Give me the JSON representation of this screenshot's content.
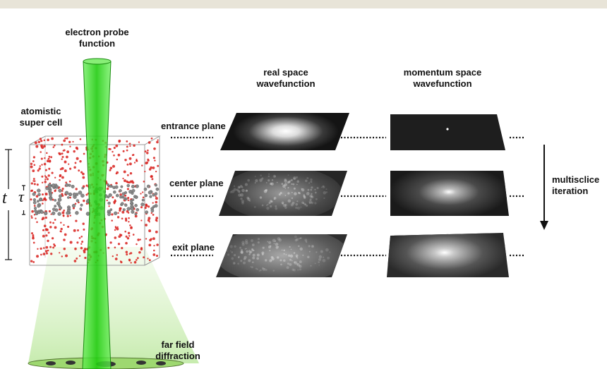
{
  "labels": {
    "probe_line1": "electron probe",
    "probe_line2": "function",
    "cell_line1": "atomistic",
    "cell_line2": "super cell",
    "real_line1": "real space",
    "real_line2": "wavefunction",
    "mom_line1": "momentum space",
    "mom_line2": "wavefunction",
    "entrance": "entrance plane",
    "center": "center plane",
    "exit": "exit plane",
    "iter_line1": "multisclice",
    "iter_line2": "iteration",
    "ff_line1": "far field",
    "ff_line2": "diffraction",
    "t_symbol": "t",
    "tau_symbol": "τ"
  },
  "colors": {
    "beam": "#33dd22",
    "atom_red": "#d8201c",
    "atom_gray": "#8a8a8a",
    "panel_dark": "#141414"
  }
}
